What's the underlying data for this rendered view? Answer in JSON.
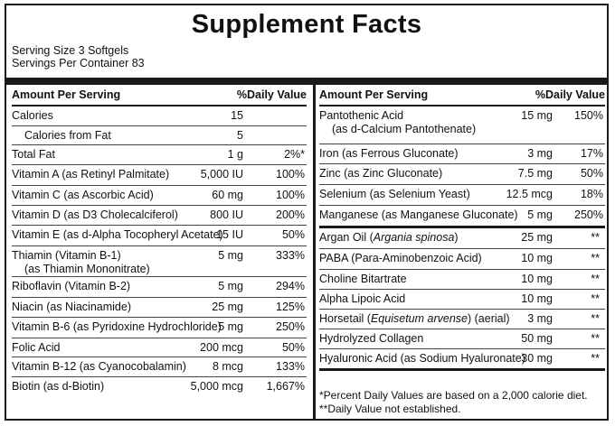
{
  "title": "Supplement Facts",
  "serving_size": "Serving Size 3 Softgels",
  "servings_per_container": "Servings Per Container 83",
  "header": {
    "amount_per_serving": "Amount Per Serving",
    "daily_value": "%Daily Value"
  },
  "left_rows": [
    {
      "name": "Calories",
      "amount": "15",
      "dv": ""
    },
    {
      "name": "Calories from Fat",
      "amount": "5",
      "dv": ""
    },
    {
      "name": "Total Fat",
      "amount": "1 g",
      "dv": "2%*"
    },
    {
      "name": "Vitamin A (as Retinyl Palmitate)",
      "amount": "5,000 IU",
      "dv": "100%"
    },
    {
      "name": "Vitamin C (as Ascorbic Acid)",
      "amount": "60 mg",
      "dv": "100%"
    },
    {
      "name": "Vitamin D (as D3 Cholecalciferol)",
      "amount": "800 IU",
      "dv": "200%"
    },
    {
      "name": "Vitamin E (as d-Alpha Tocopheryl Acetate)",
      "amount": "15 IU",
      "dv": "50%"
    },
    {
      "name": "Thiamin (Vitamin B-1)",
      "sub": "(as Thiamin Mononitrate)",
      "amount": "5 mg",
      "dv": "333%"
    },
    {
      "name": "Riboflavin (Vitamin B-2)",
      "amount": "5 mg",
      "dv": "294%"
    },
    {
      "name": "Niacin (as Niacinamide)",
      "amount": "25 mg",
      "dv": "125%"
    },
    {
      "name": "Vitamin B-6 (as Pyridoxine Hydrochloride)",
      "amount": "5 mg",
      "dv": "250%"
    },
    {
      "name": "Folic Acid",
      "amount": "200 mcg",
      "dv": "50%"
    },
    {
      "name": "Vitamin B-12 (as Cyanocobalamin)",
      "amount": "8 mcg",
      "dv": "133%"
    },
    {
      "name": "Biotin (as d-Biotin)",
      "amount": "5,000 mcg",
      "dv": "1,667%"
    }
  ],
  "right_rows_dv": [
    {
      "name": "Pantothenic Acid",
      "sub": "(as d-Calcium Pantothenate)",
      "amount": "15 mg",
      "dv": "150%"
    },
    {
      "name": "Iron (as Ferrous Gluconate)",
      "amount": "3 mg",
      "dv": "17%"
    },
    {
      "name": "Zinc (as Zinc Gluconate)",
      "amount": "7.5 mg",
      "dv": "50%"
    },
    {
      "name": "Selenium (as Selenium Yeast)",
      "amount": "12.5 mcg",
      "dv": "18%"
    },
    {
      "name": "Manganese (as Manganese Gluconate)",
      "amount": "5 mg",
      "dv": "250%"
    }
  ],
  "right_rows_nodv": [
    {
      "name": "Argan Oil",
      "italic": "Argania spinosa",
      "amount": "25 mg",
      "dv": "**"
    },
    {
      "name": "PABA (Para-Aminobenzoic Acid)",
      "amount": "10 mg",
      "dv": "**"
    },
    {
      "name": "Choline Bitartrate",
      "amount": "10 mg",
      "dv": "**"
    },
    {
      "name": "Alpha Lipoic Acid",
      "amount": "10 mg",
      "dv": "**"
    },
    {
      "name": "Horsetail",
      "italic": "Equisetum arvense",
      "suffix": "(aerial)",
      "amount": "3 mg",
      "dv": "**"
    },
    {
      "name": "Hydrolyzed Collagen",
      "amount": "50 mg",
      "dv": "**"
    },
    {
      "name": "Hyaluronic Acid (as Sodium Hyaluronate)",
      "amount": "30 mg",
      "dv": "**"
    }
  ],
  "footnotes": [
    "*Percent Daily Values are based on a 2,000 calorie diet.",
    "**Daily Value not established."
  ]
}
